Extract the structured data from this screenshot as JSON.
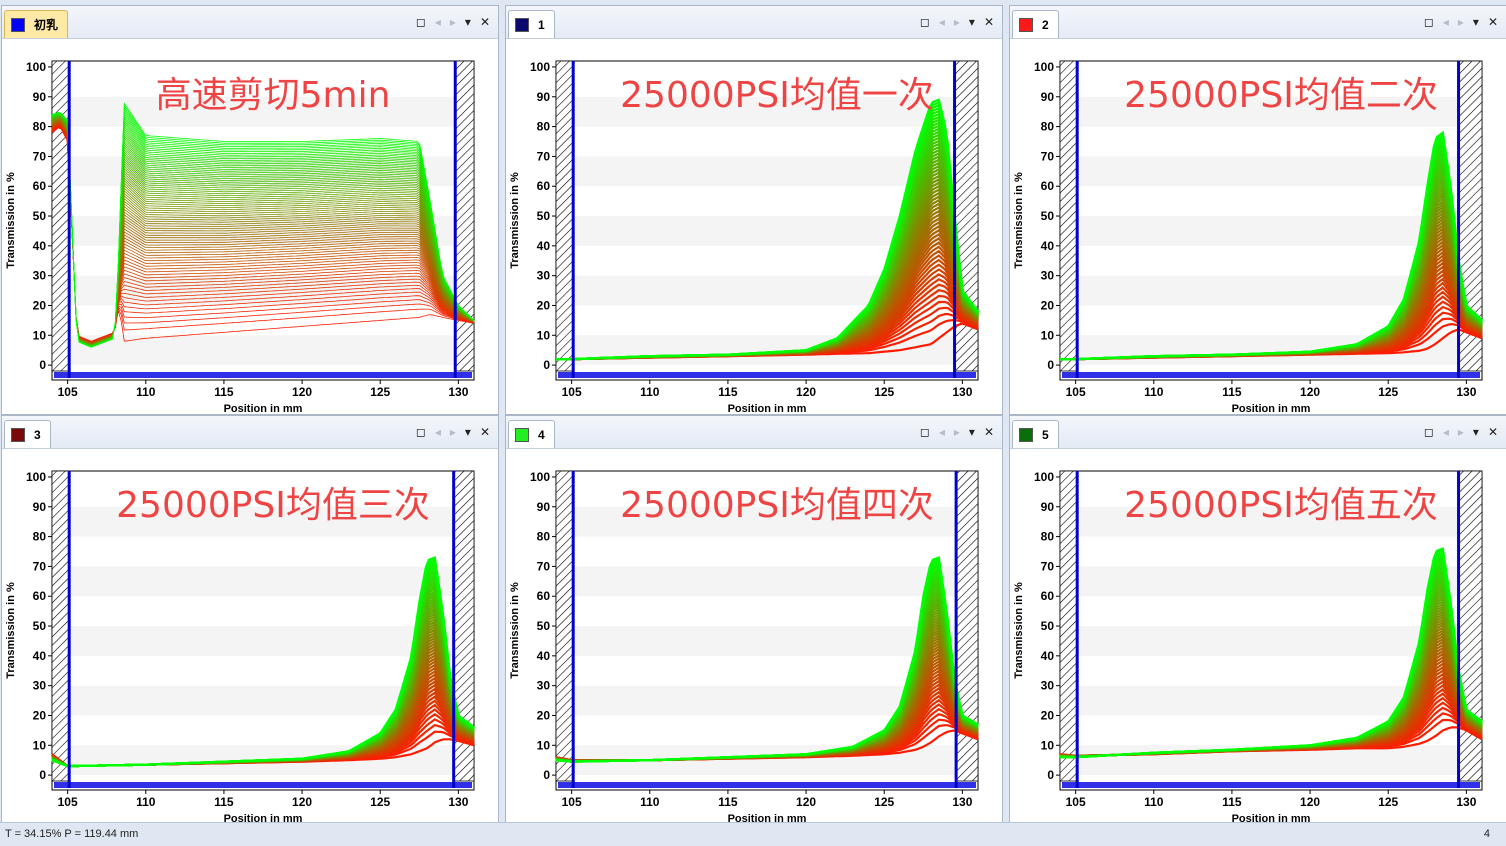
{
  "panels": [
    {
      "tab": "初乳",
      "swatch": "#0000ff",
      "active": true
    },
    {
      "tab": "1",
      "swatch": "#0a0a6e",
      "active": false
    },
    {
      "tab": "2",
      "swatch": "#ff1a1a",
      "active": false
    },
    {
      "tab": "3",
      "swatch": "#7a0a0a",
      "active": false
    },
    {
      "tab": "4",
      "swatch": "#22ee22",
      "active": false
    },
    {
      "tab": "5",
      "swatch": "#0a6e0a",
      "active": false
    }
  ],
  "toolbar_icons": [
    "restore-icon",
    "prev-icon",
    "next-icon",
    "dropdown-icon",
    "close-icon"
  ],
  "statusbar": {
    "left": "T = 34.15%  P = 119.44 mm",
    "right": "4"
  },
  "colors": {
    "first_profile": "#ff1a00",
    "last_profile": "#00ff00",
    "marker": "#0000cc",
    "annotation": "#ee4444"
  },
  "chart_data": [
    {
      "type": "line",
      "annotation": "高速剪切5min",
      "xlabel": "Position in mm",
      "ylabel": "Transmission in %",
      "xlim": [
        104,
        131
      ],
      "ylim": [
        -5,
        102
      ],
      "xticks": [
        105,
        110,
        115,
        120,
        125,
        130
      ],
      "yticks": [
        0,
        10,
        20,
        30,
        40,
        50,
        60,
        70,
        80,
        90,
        100
      ],
      "markers_x": [
        105.1,
        129.8
      ],
      "profile_count": 80,
      "x": [
        104,
        104.5,
        105,
        105.6,
        106.5,
        108,
        108.3,
        108.6,
        110,
        115,
        120,
        125,
        127.5,
        128.2,
        129,
        130,
        131
      ],
      "series": [
        {
          "name": "first",
          "values": [
            78,
            80,
            75,
            10,
            8,
            11,
            20,
            8,
            9,
            11,
            13,
            15,
            16,
            17,
            16,
            15,
            14
          ]
        },
        {
          "name": "last",
          "values": [
            84,
            85,
            82,
            8,
            6,
            9,
            40,
            88,
            77,
            75,
            75,
            76,
            75,
            55,
            30,
            20,
            15
          ]
        }
      ]
    },
    {
      "type": "line",
      "annotation": "25000PSI均值一次",
      "xlabel": "Position in mm",
      "ylabel": "Transmission in %",
      "xlim": [
        104,
        131
      ],
      "ylim": [
        -5,
        102
      ],
      "xticks": [
        105,
        110,
        115,
        120,
        125,
        130
      ],
      "yticks": [
        0,
        10,
        20,
        30,
        40,
        50,
        60,
        70,
        80,
        90,
        100
      ],
      "markers_x": [
        105.1,
        129.5
      ],
      "profile_count": 60,
      "x": [
        104,
        105,
        110,
        115,
        120,
        122,
        124,
        125,
        126,
        127,
        128,
        128.5,
        129,
        129.5,
        130,
        131
      ],
      "series": [
        {
          "name": "first",
          "values": [
            2,
            2,
            2.5,
            3,
            3.5,
            3.8,
            4,
            4.5,
            5,
            6,
            7,
            9,
            11,
            13,
            14,
            12
          ]
        },
        {
          "name": "last",
          "values": [
            2,
            2,
            3,
            3.5,
            5,
            9,
            20,
            32,
            50,
            72,
            88,
            89,
            78,
            50,
            25,
            18
          ]
        }
      ]
    },
    {
      "type": "line",
      "annotation": "25000PSI均值二次",
      "xlabel": "Position in mm",
      "ylabel": "Transmission in %",
      "xlim": [
        104,
        131
      ],
      "ylim": [
        -5,
        102
      ],
      "xticks": [
        105,
        110,
        115,
        120,
        125,
        130
      ],
      "yticks": [
        0,
        10,
        20,
        30,
        40,
        50,
        60,
        70,
        80,
        90,
        100
      ],
      "markers_x": [
        105.1,
        129.5
      ],
      "profile_count": 60,
      "x": [
        104,
        105,
        110,
        115,
        120,
        123,
        125,
        126,
        127,
        127.5,
        128,
        128.5,
        129,
        129.5,
        130,
        131
      ],
      "series": [
        {
          "name": "first",
          "values": [
            2,
            2,
            2.5,
            3,
            3.5,
            3.8,
            4,
            4.3,
            4.8,
            5.5,
            7,
            9,
            11,
            12,
            11,
            9
          ]
        },
        {
          "name": "last",
          "values": [
            2,
            2,
            3,
            3.5,
            4.5,
            7,
            13,
            22,
            42,
            60,
            76,
            78,
            60,
            35,
            20,
            15
          ]
        }
      ]
    },
    {
      "type": "line",
      "annotation": "25000PSI均值三次",
      "xlabel": "Position in mm",
      "ylabel": "Transmission in %",
      "xlim": [
        104,
        131
      ],
      "ylim": [
        -5,
        102
      ],
      "xticks": [
        105,
        110,
        115,
        120,
        125,
        130
      ],
      "yticks": [
        0,
        10,
        20,
        30,
        40,
        50,
        60,
        70,
        80,
        90,
        100
      ],
      "markers_x": [
        105.1,
        129.7
      ],
      "profile_count": 60,
      "x": [
        104,
        105,
        110,
        115,
        120,
        123,
        125,
        126,
        127,
        127.5,
        128,
        128.5,
        129,
        129.5,
        130,
        131
      ],
      "series": [
        {
          "name": "first",
          "values": [
            7,
            3,
            3.5,
            4,
            4.5,
            5,
            5.5,
            6,
            7,
            8,
            9,
            11,
            12,
            12,
            11.5,
            10
          ]
        },
        {
          "name": "last",
          "values": [
            5,
            3,
            3.5,
            4.5,
            5.5,
            8,
            14,
            22,
            40,
            58,
            72,
            73,
            55,
            32,
            20,
            16
          ]
        }
      ]
    },
    {
      "type": "line",
      "annotation": "25000PSI均值四次",
      "xlabel": "Position in mm",
      "ylabel": "Transmission in %",
      "xlim": [
        104,
        131
      ],
      "ylim": [
        -5,
        102
      ],
      "xticks": [
        105,
        110,
        115,
        120,
        125,
        130
      ],
      "yticks": [
        0,
        10,
        20,
        30,
        40,
        50,
        60,
        70,
        80,
        90,
        100
      ],
      "markers_x": [
        105.1,
        129.6
      ],
      "profile_count": 60,
      "x": [
        104,
        105,
        110,
        115,
        120,
        123,
        125,
        126,
        127,
        127.5,
        128,
        128.5,
        129,
        129.5,
        130,
        131
      ],
      "series": [
        {
          "name": "first",
          "values": [
            6,
            5,
            5,
            5.5,
            6,
            6.5,
            7,
            7.5,
            8.5,
            9.5,
            11,
            13,
            14.5,
            15,
            14,
            12
          ]
        },
        {
          "name": "last",
          "values": [
            5,
            4.5,
            5,
            6,
            7,
            9.5,
            15,
            23,
            42,
            60,
            72,
            73,
            55,
            32,
            20,
            17
          ]
        }
      ]
    },
    {
      "type": "line",
      "annotation": "25000PSI均值五次",
      "xlabel": "Position in mm",
      "ylabel": "Transmission in %",
      "xlim": [
        104,
        131
      ],
      "ylim": [
        -5,
        102
      ],
      "xticks": [
        105,
        110,
        115,
        120,
        125,
        130
      ],
      "yticks": [
        0,
        10,
        20,
        30,
        40,
        50,
        60,
        70,
        80,
        90,
        100
      ],
      "markers_x": [
        105.1,
        129.5
      ],
      "profile_count": 60,
      "x": [
        104,
        105,
        110,
        115,
        120,
        123,
        125,
        126,
        127,
        127.5,
        128,
        128.5,
        129,
        129.5,
        130,
        131
      ],
      "series": [
        {
          "name": "first",
          "values": [
            7,
            6.5,
            7,
            8,
            8.5,
            9,
            9,
            9.5,
            10.5,
            11.5,
            13,
            15,
            16,
            16,
            15,
            12
          ]
        },
        {
          "name": "last",
          "values": [
            6,
            6,
            7.5,
            8.5,
            10,
            12.5,
            18,
            26,
            45,
            62,
            75,
            76,
            58,
            35,
            22,
            18
          ]
        }
      ]
    }
  ]
}
